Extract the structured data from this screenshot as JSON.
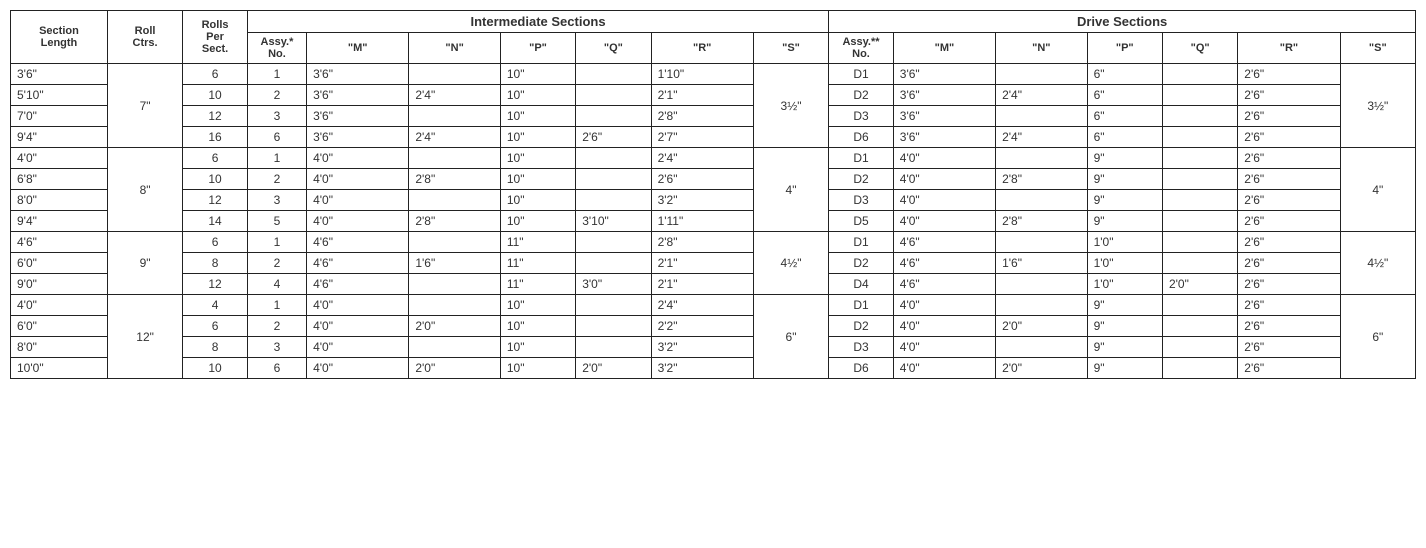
{
  "table": {
    "type": "table",
    "background_color": "#ffffff",
    "grid_color": "#222222",
    "text_color": "#333333",
    "font_family": "Arial, Helvetica, sans-serif",
    "header_fontsize": 12,
    "cell_fontsize": 12,
    "column_widths_ratio": [
      0.9,
      0.7,
      0.6,
      0.55,
      0.95,
      0.85,
      0.7,
      0.7,
      0.95,
      0.7,
      0.6,
      0.95,
      0.85,
      0.7,
      0.7,
      0.95,
      0.7
    ],
    "headers": {
      "section_length": "Section\nLength",
      "roll_ctrs": "Roll\nCtrs.",
      "rolls_per_sect": "Rolls\nPer\nSect.",
      "intermediate_group": "Intermediate Sections",
      "drive_group": "Drive Sections",
      "assy_no_intermediate": "Assy.*\nNo.",
      "assy_no_drive": "Assy.**\nNo.",
      "M": "\"M\"",
      "N": "\"N\"",
      "P": "\"P\"",
      "Q": "\"Q\"",
      "R": "\"R\"",
      "S": "\"S\""
    },
    "groups": [
      {
        "roll_ctrs": "7\"",
        "int_S": "3½\"",
        "drv_S": "3½\"",
        "rows": [
          {
            "section_length": "3'6\"",
            "rolls_per_sect": "6",
            "int_assy": "1",
            "int_M": "3'6\"",
            "int_N": "",
            "int_P": "10\"",
            "int_Q": "",
            "int_R": "1'10\"",
            "drv_assy": "D1",
            "drv_M": "3'6\"",
            "drv_N": "",
            "drv_P": "6\"",
            "drv_Q": "",
            "drv_R": "2'6\""
          },
          {
            "section_length": "5'10\"",
            "rolls_per_sect": "10",
            "int_assy": "2",
            "int_M": "3'6\"",
            "int_N": "2'4\"",
            "int_P": "10\"",
            "int_Q": "",
            "int_R": "2'1\"",
            "drv_assy": "D2",
            "drv_M": "3'6\"",
            "drv_N": "2'4\"",
            "drv_P": "6\"",
            "drv_Q": "",
            "drv_R": "2'6\""
          },
          {
            "section_length": "7'0\"",
            "rolls_per_sect": "12",
            "int_assy": "3",
            "int_M": "3'6\"",
            "int_N": "",
            "int_P": "10\"",
            "int_Q": "",
            "int_R": "2'8\"",
            "drv_assy": "D3",
            "drv_M": "3'6\"",
            "drv_N": "",
            "drv_P": "6\"",
            "drv_Q": "",
            "drv_R": "2'6\""
          },
          {
            "section_length": "9'4\"",
            "rolls_per_sect": "16",
            "int_assy": "6",
            "int_M": "3'6\"",
            "int_N": "2'4\"",
            "int_P": "10\"",
            "int_Q": "2'6\"",
            "int_R": "2'7\"",
            "drv_assy": "D6",
            "drv_M": "3'6\"",
            "drv_N": "2'4\"",
            "drv_P": "6\"",
            "drv_Q": "",
            "drv_R": "2'6\""
          }
        ]
      },
      {
        "roll_ctrs": "8\"",
        "int_S": "4\"",
        "drv_S": "4\"",
        "rows": [
          {
            "section_length": "4'0\"",
            "rolls_per_sect": "6",
            "int_assy": "1",
            "int_M": "4'0\"",
            "int_N": "",
            "int_P": "10\"",
            "int_Q": "",
            "int_R": "2'4\"",
            "drv_assy": "D1",
            "drv_M": "4'0\"",
            "drv_N": "",
            "drv_P": "9\"",
            "drv_Q": "",
            "drv_R": "2'6\""
          },
          {
            "section_length": "6'8\"",
            "rolls_per_sect": "10",
            "int_assy": "2",
            "int_M": "4'0\"",
            "int_N": "2'8\"",
            "int_P": "10\"",
            "int_Q": "",
            "int_R": "2'6\"",
            "drv_assy": "D2",
            "drv_M": "4'0\"",
            "drv_N": "2'8\"",
            "drv_P": "9\"",
            "drv_Q": "",
            "drv_R": "2'6\""
          },
          {
            "section_length": "8'0\"",
            "rolls_per_sect": "12",
            "int_assy": "3",
            "int_M": "4'0\"",
            "int_N": "",
            "int_P": "10\"",
            "int_Q": "",
            "int_R": "3'2\"",
            "drv_assy": "D3",
            "drv_M": "4'0\"",
            "drv_N": "",
            "drv_P": "9\"",
            "drv_Q": "",
            "drv_R": "2'6\""
          },
          {
            "section_length": "9'4\"",
            "rolls_per_sect": "14",
            "int_assy": "5",
            "int_M": "4'0\"",
            "int_N": "2'8\"",
            "int_P": "10\"",
            "int_Q": "3'10\"",
            "int_R": "1'11\"",
            "drv_assy": "D5",
            "drv_M": "4'0\"",
            "drv_N": "2'8\"",
            "drv_P": "9\"",
            "drv_Q": "",
            "drv_R": "2'6\""
          }
        ]
      },
      {
        "roll_ctrs": "9\"",
        "int_S": "4½\"",
        "drv_S": "4½\"",
        "rows": [
          {
            "section_length": "4'6\"",
            "rolls_per_sect": "6",
            "int_assy": "1",
            "int_M": "4'6\"",
            "int_N": "",
            "int_P": "11\"",
            "int_Q": "",
            "int_R": "2'8\"",
            "drv_assy": "D1",
            "drv_M": "4'6\"",
            "drv_N": "",
            "drv_P": "1'0\"",
            "drv_Q": "",
            "drv_R": "2'6\""
          },
          {
            "section_length": "6'0\"",
            "rolls_per_sect": "8",
            "int_assy": "2",
            "int_M": "4'6\"",
            "int_N": "1'6\"",
            "int_P": "11\"",
            "int_Q": "",
            "int_R": "2'1\"",
            "drv_assy": "D2",
            "drv_M": "4'6\"",
            "drv_N": "1'6\"",
            "drv_P": "1'0\"",
            "drv_Q": "",
            "drv_R": "2'6\""
          },
          {
            "section_length": "9'0\"",
            "rolls_per_sect": "12",
            "int_assy": "4",
            "int_M": "4'6\"",
            "int_N": "",
            "int_P": "11\"",
            "int_Q": "3'0\"",
            "int_R": "2'1\"",
            "drv_assy": "D4",
            "drv_M": "4'6\"",
            "drv_N": "",
            "drv_P": "1'0\"",
            "drv_Q": "2'0\"",
            "drv_R": "2'6\""
          }
        ]
      },
      {
        "roll_ctrs": "12\"",
        "int_S": "6\"",
        "drv_S": "6\"",
        "rows": [
          {
            "section_length": "4'0\"",
            "rolls_per_sect": "4",
            "int_assy": "1",
            "int_M": "4'0\"",
            "int_N": "",
            "int_P": "10\"",
            "int_Q": "",
            "int_R": "2'4\"",
            "drv_assy": "D1",
            "drv_M": "4'0\"",
            "drv_N": "",
            "drv_P": "9\"",
            "drv_Q": "",
            "drv_R": "2'6\""
          },
          {
            "section_length": "6'0\"",
            "rolls_per_sect": "6",
            "int_assy": "2",
            "int_M": "4'0\"",
            "int_N": "2'0\"",
            "int_P": "10\"",
            "int_Q": "",
            "int_R": "2'2\"",
            "drv_assy": "D2",
            "drv_M": "4'0\"",
            "drv_N": "2'0\"",
            "drv_P": "9\"",
            "drv_Q": "",
            "drv_R": "2'6\""
          },
          {
            "section_length": "8'0\"",
            "rolls_per_sect": "8",
            "int_assy": "3",
            "int_M": "4'0\"",
            "int_N": "",
            "int_P": "10\"",
            "int_Q": "",
            "int_R": "3'2\"",
            "drv_assy": "D3",
            "drv_M": "4'0\"",
            "drv_N": "",
            "drv_P": "9\"",
            "drv_Q": "",
            "drv_R": "2'6\""
          },
          {
            "section_length": "10'0\"",
            "rolls_per_sect": "10",
            "int_assy": "6",
            "int_M": "4'0\"",
            "int_N": "2'0\"",
            "int_P": "10\"",
            "int_Q": "2'0\"",
            "int_R": "3'2\"",
            "drv_assy": "D6",
            "drv_M": "4'0\"",
            "drv_N": "2'0\"",
            "drv_P": "9\"",
            "drv_Q": "",
            "drv_R": "2'6\""
          }
        ]
      }
    ]
  }
}
